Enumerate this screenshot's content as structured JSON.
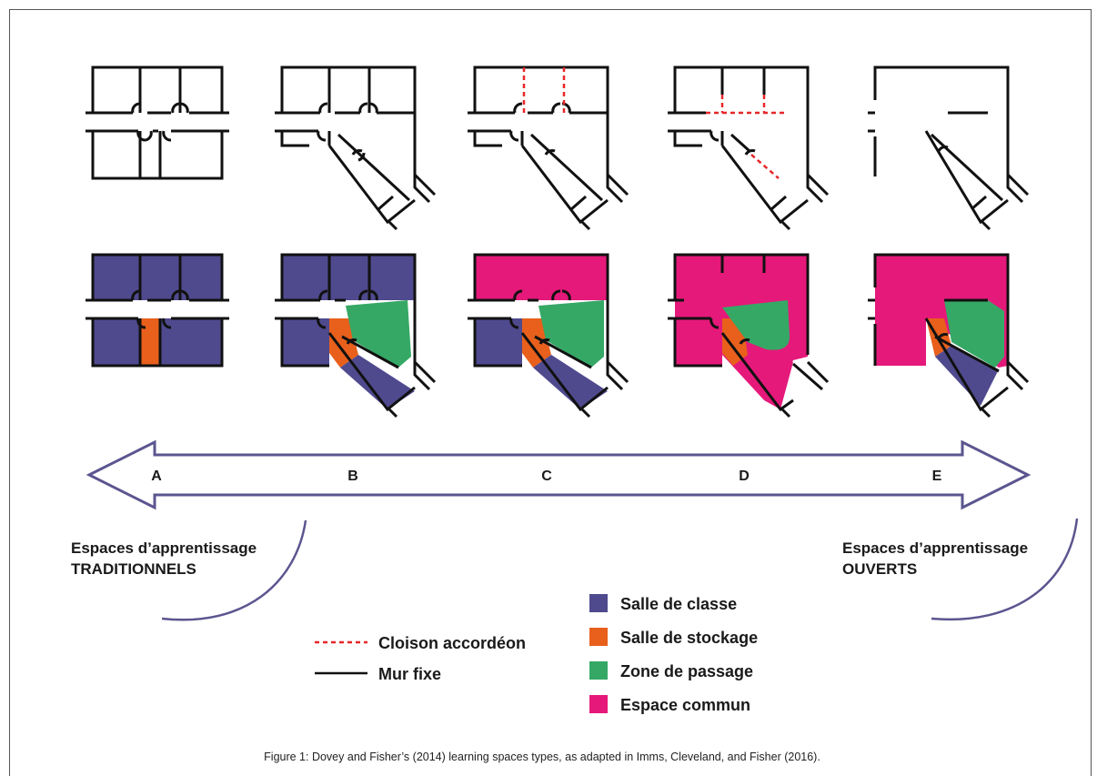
{
  "colors": {
    "classroom": "#4f4a8e",
    "storage": "#e8601c",
    "passage": "#35a865",
    "common": "#e5197a",
    "accordion": "#e8262a",
    "wall": "#111111",
    "arrow": "#5b558f"
  },
  "types": [
    {
      "id": "a",
      "letter": "A"
    },
    {
      "id": "b",
      "letter": "B"
    },
    {
      "id": "c",
      "letter": "C"
    },
    {
      "id": "d",
      "letter": "D"
    },
    {
      "id": "e",
      "letter": "E"
    }
  ],
  "left_label": {
    "line1": "Espaces d’apprentissage",
    "line2": "TRADITIONNELS"
  },
  "right_label": {
    "line1": "Espaces d’apprentissage",
    "line2": "OUVERTS"
  },
  "line_legend": [
    {
      "style": "dashed",
      "label": "Cloison accordéon"
    },
    {
      "style": "solid",
      "label": "Mur fixe"
    }
  ],
  "color_legend": [
    {
      "color": "#4f4a8e",
      "label": "Salle de classe"
    },
    {
      "color": "#e8601c",
      "label": "Salle de stockage"
    },
    {
      "color": "#35a865",
      "label": "Zone de passage"
    },
    {
      "color": "#e5197a",
      "label": "Espace commun"
    }
  ],
  "caption": "Figure 1: Dovey and Fisher’s (2014) learning spaces types, as adapted in Imms, Cleveland, and Fisher (2016)."
}
